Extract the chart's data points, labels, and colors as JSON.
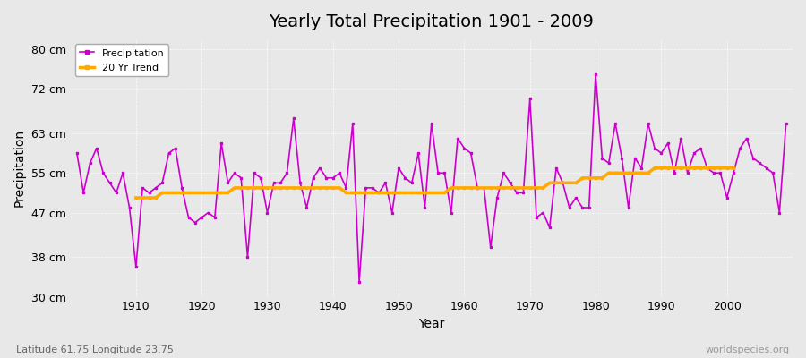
{
  "title": "Yearly Total Precipitation 1901 - 2009",
  "xlabel": "Year",
  "ylabel": "Precipitation",
  "subtitle_left": "Latitude 61.75 Longitude 23.75",
  "subtitle_right": "worldspecies.org",
  "ylim": [
    30,
    82
  ],
  "xlim": [
    1900,
    2010
  ],
  "yticks": [
    30,
    38,
    47,
    55,
    63,
    72,
    80
  ],
  "ytick_labels": [
    "30 cm",
    "38 cm",
    "47 cm",
    "55 cm",
    "63 cm",
    "72 cm",
    "80 cm"
  ],
  "xticks": [
    1910,
    1920,
    1930,
    1940,
    1950,
    1960,
    1970,
    1980,
    1990,
    2000
  ],
  "precip_color": "#cc00cc",
  "trend_color": "#ffaa00",
  "background_color": "#e8e8e8",
  "plot_bg_color": "#e8e8e8",
  "legend_labels": [
    "Precipitation",
    "20 Yr Trend"
  ],
  "years": [
    1901,
    1902,
    1903,
    1904,
    1905,
    1906,
    1907,
    1908,
    1909,
    1910,
    1911,
    1912,
    1913,
    1914,
    1915,
    1916,
    1917,
    1918,
    1919,
    1920,
    1921,
    1922,
    1923,
    1924,
    1925,
    1926,
    1927,
    1928,
    1929,
    1930,
    1931,
    1932,
    1933,
    1934,
    1935,
    1936,
    1937,
    1938,
    1939,
    1940,
    1941,
    1942,
    1943,
    1944,
    1945,
    1946,
    1947,
    1948,
    1949,
    1950,
    1951,
    1952,
    1953,
    1954,
    1955,
    1956,
    1957,
    1958,
    1959,
    1960,
    1961,
    1962,
    1963,
    1964,
    1965,
    1966,
    1967,
    1968,
    1969,
    1970,
    1971,
    1972,
    1973,
    1974,
    1975,
    1976,
    1977,
    1978,
    1979,
    1980,
    1981,
    1982,
    1983,
    1984,
    1985,
    1986,
    1987,
    1988,
    1989,
    1990,
    1991,
    1992,
    1993,
    1994,
    1995,
    1996,
    1997,
    1998,
    1999,
    2000,
    2001,
    2002,
    2003,
    2004,
    2005,
    2006,
    2007,
    2008,
    2009
  ],
  "precip": [
    59,
    51,
    57,
    60,
    55,
    53,
    51,
    55,
    48,
    36,
    52,
    51,
    52,
    53,
    59,
    60,
    52,
    46,
    45,
    46,
    47,
    46,
    61,
    53,
    55,
    54,
    38,
    55,
    54,
    47,
    53,
    53,
    55,
    66,
    53,
    48,
    54,
    56,
    54,
    54,
    55,
    52,
    65,
    33,
    52,
    52,
    51,
    53,
    47,
    56,
    54,
    53,
    59,
    48,
    65,
    55,
    55,
    47,
    62,
    60,
    59,
    52,
    52,
    40,
    50,
    55,
    53,
    51,
    51,
    70,
    46,
    47,
    44,
    56,
    53,
    48,
    50,
    48,
    48,
    75,
    58,
    57,
    65,
    58,
    48,
    58,
    56,
    65,
    60,
    59,
    61,
    55,
    62,
    55,
    59,
    60,
    56,
    55,
    55,
    50,
    55,
    60,
    62,
    58,
    57,
    56,
    55,
    47,
    65
  ],
  "trend": [
    null,
    null,
    null,
    null,
    null,
    null,
    null,
    null,
    null,
    50,
    50,
    50,
    50,
    51,
    51,
    51,
    51,
    51,
    51,
    51,
    51,
    51,
    51,
    51,
    52,
    52,
    52,
    52,
    52,
    52,
    52,
    52,
    52,
    52,
    52,
    52,
    52,
    52,
    52,
    52,
    52,
    51,
    51,
    51,
    51,
    51,
    51,
    51,
    51,
    51,
    51,
    51,
    51,
    51,
    51,
    51,
    51,
    52,
    52,
    52,
    52,
    52,
    52,
    52,
    52,
    52,
    52,
    52,
    52,
    52,
    52,
    52,
    53,
    53,
    53,
    53,
    53,
    54,
    54,
    54,
    54,
    55,
    55,
    55,
    55,
    55,
    55,
    55,
    56,
    56,
    56,
    56,
    56,
    56,
    56,
    56,
    56,
    56,
    56,
    56,
    56,
    null,
    null,
    null,
    null,
    null,
    null,
    null,
    null
  ]
}
